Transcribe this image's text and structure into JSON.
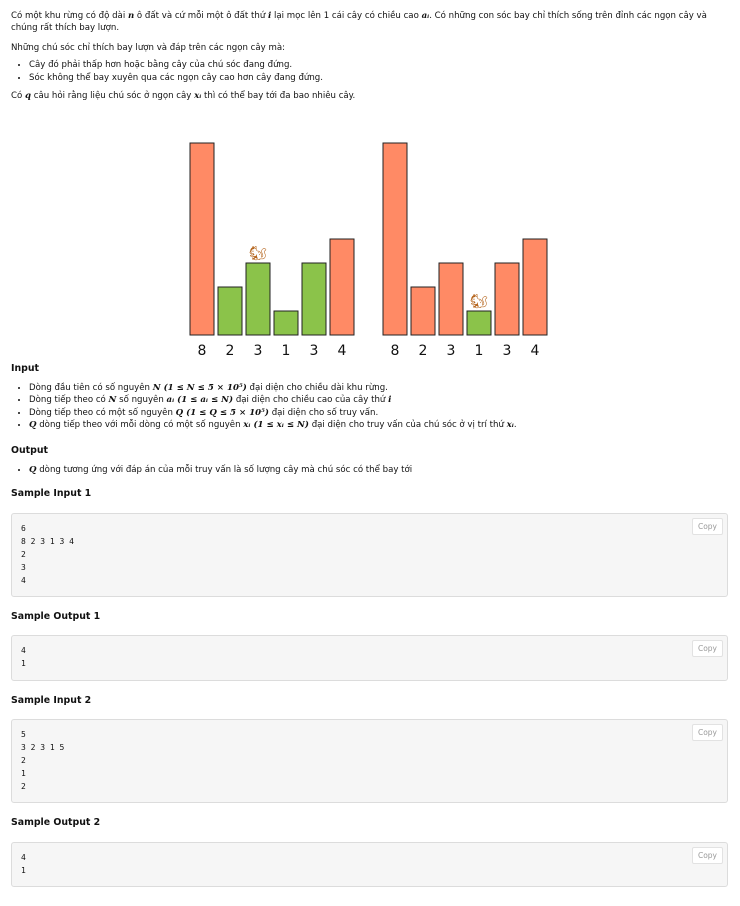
{
  "intro": {
    "p1_a": "Có một khu rừng có độ dài ",
    "p1_n": "n",
    "p1_b": " ô đất và cứ mỗi một ô đất thứ ",
    "p1_i": "i",
    "p1_c": " lại mọc lên 1 cái cây có chiều cao ",
    "p1_ai": "aᵢ",
    "p1_d": ". Có những con sóc bay chỉ thích sống trên đỉnh các ngọn cây và chúng rất thích bay lượn.",
    "p2": "Những chú sóc chỉ thích bay lượn và đáp trên các ngọn cây mà:",
    "rules": [
      "Cây đó phải thấp hơn hoặc bằng cây của chú sóc đang đứng.",
      "Sóc không thể bay xuyên qua các ngọn cây cao hơn cây đang đứng."
    ],
    "p3_a": "Có ",
    "p3_q": "q",
    "p3_b": " câu hỏi rằng liệu chú sóc ở ngọn cây ",
    "p3_x": "xᵢ",
    "p3_c": " thì có thể bay tới đa bao nhiêu cây."
  },
  "figure": {
    "left": {
      "heights": [
        8,
        2,
        3,
        1,
        3,
        4
      ],
      "highlight": [
        1,
        2,
        3,
        4
      ],
      "squirrel_on": 2
    },
    "right": {
      "heights": [
        8,
        2,
        3,
        1,
        3,
        4
      ],
      "highlight": [
        3
      ],
      "squirrel_on": 3
    },
    "colors": {
      "tree": "#ff8a65",
      "reachable": "#8bc34a",
      "stroke": "#222222"
    },
    "squirrel_glyph": "🐿"
  },
  "input_section": {
    "heading": "Input",
    "items": [
      {
        "pre": "Dòng đầu tiên có số nguyên ",
        "math": "N (1 ≤ N ≤ 5 × 10⁵)",
        "post": " đại diện cho chiều dài khu rừng."
      },
      {
        "pre": "Dòng tiếp theo có ",
        "math": "N",
        "mid": " số nguyên ",
        "math2": "aᵢ (1 ≤ aᵢ ≤ N)",
        "post": " đại diện cho chiều cao của cây thứ ",
        "math3": "i"
      },
      {
        "pre": "Dòng tiếp theo có một số nguyên ",
        "math": "Q (1 ≤ Q ≤ 5 × 10⁵)",
        "post": " đại diện cho số truy vấn."
      },
      {
        "pre": "",
        "math": "Q",
        "mid": " dòng tiếp theo với mỗi dòng có một số nguyên ",
        "math2": "xᵢ (1 ≤ xᵢ ≤ N)",
        "post": " đại diện cho truy vấn của chú sóc ở vị trí thứ ",
        "math3": "xᵢ",
        "end": "."
      }
    ]
  },
  "output_section": {
    "heading": "Output",
    "items": [
      {
        "math": "Q",
        "post": " dòng tương ứng với đáp án của mỗi truy vấn là số lượng cây mà chú sóc có thể bay tới"
      }
    ]
  },
  "samples": [
    {
      "title": "Sample Input 1",
      "lines": [
        "6",
        "8 2 3 1 3 4",
        "2",
        "3",
        "4"
      ]
    },
    {
      "title": "Sample Output 1",
      "lines": [
        "4",
        "1"
      ]
    },
    {
      "title": "Sample Input 2",
      "lines": [
        "5",
        "3 2 3 1 5",
        "2",
        "1",
        "2"
      ]
    },
    {
      "title": "Sample Output 2",
      "lines": [
        "4",
        "1"
      ]
    }
  ],
  "copy_label": "Copy"
}
